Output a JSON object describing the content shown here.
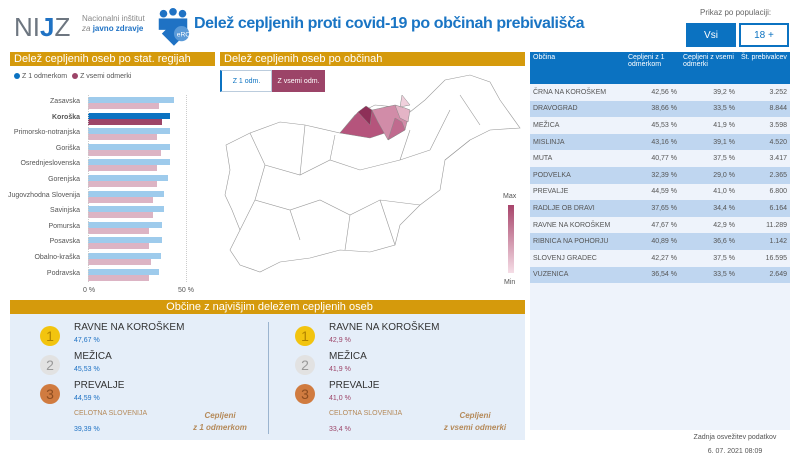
{
  "header": {
    "logo": "NIJZ",
    "logo_sub1": "Nacionalni inštitut",
    "logo_sub2_prefix": "za",
    "logo_sub2_bold": "javno zdravje",
    "logo2": "eRCO",
    "title": "Delež cepljenih proti covid-19 po občinah prebivališča"
  },
  "population": {
    "label": "Prikaz po populaciji:",
    "options": [
      "Vsi",
      "18 +"
    ],
    "selected": "Vsi"
  },
  "regions_panel": {
    "title": "Delež cepljenih oseb po stat. regijah",
    "legend": [
      "Z 1 odmerkom",
      "Z vsemi odmerki"
    ]
  },
  "chart_data": {
    "type": "bar",
    "orientation": "horizontal",
    "xlim": [
      0,
      50
    ],
    "xticks": [
      "0 %",
      "50 %"
    ],
    "categories": [
      "Zasavska",
      "Koroška",
      "Primorsko-notranjska",
      "Goriška",
      "Osrednjeslovenska",
      "Gorenjska",
      "Jugovzhodna Slovenija",
      "Savinjska",
      "Pomurska",
      "Posavska",
      "Obalno-kraška",
      "Podravska"
    ],
    "highlighted": "Koroška",
    "series": [
      {
        "name": "Z 1 odmerkom",
        "color": "#9ecbec",
        "highlight_color": "#0b72c1",
        "values": [
          44,
          42,
          42,
          42,
          42,
          41,
          39,
          39,
          38,
          38,
          37,
          36
        ]
      },
      {
        "name": "Z vsemi odmerki",
        "color": "#dcb4c4",
        "highlight_color": "#9c4468",
        "values": [
          36,
          38,
          35,
          37,
          35,
          35,
          33,
          33,
          31,
          31,
          32,
          31
        ]
      }
    ]
  },
  "map_panel": {
    "title": "Delež cepljenih oseb po občinah",
    "tabs": [
      "Z 1 odm.",
      "Z vsemi odm."
    ],
    "active_tab": "Z vsemi odm.",
    "legend_max": "Max",
    "legend_min": "Min",
    "color": "#a8456b"
  },
  "table": {
    "columns": [
      "Občina",
      "Cepljeni z 1 odmerkom",
      "Cepljeni z vsemi odmerki",
      "Št. prebivalcev"
    ],
    "rows": [
      [
        "ČRNA NA KOROŠKEM",
        "42,56 %",
        "39,2 %",
        "3.252"
      ],
      [
        "DRAVOGRAD",
        "38,66 %",
        "33,5 %",
        "8.844"
      ],
      [
        "MEŽICA",
        "45,53 %",
        "41,9 %",
        "3.598"
      ],
      [
        "MISLINJA",
        "43,16 %",
        "39,1 %",
        "4.520"
      ],
      [
        "MUTA",
        "40,77 %",
        "37,5 %",
        "3.417"
      ],
      [
        "PODVELKA",
        "32,39 %",
        "29,0 %",
        "2.365"
      ],
      [
        "PREVALJE",
        "44,59 %",
        "41,0 %",
        "6.800"
      ],
      [
        "RADLJE OB DRAVI",
        "37,65 %",
        "34,4 %",
        "6.164"
      ],
      [
        "RAVNE NA KOROŠKEM",
        "47,67 %",
        "42,9 %",
        "11.289"
      ],
      [
        "RIBNICA NA POHORJU",
        "40,89 %",
        "36,6 %",
        "1.142"
      ],
      [
        "SLOVENJ GRADEC",
        "42,27 %",
        "37,5 %",
        "16.595"
      ],
      [
        "VUZENICA",
        "36,54 %",
        "33,5 %",
        "2.649"
      ]
    ]
  },
  "top": {
    "title": "Občine z najvišjim deležem cepljenih oseb",
    "first": {
      "items": [
        {
          "rank": "1",
          "name": "RAVNE NA KOROŠKEM",
          "value": "47,67 %"
        },
        {
          "rank": "2",
          "name": "MEŽICA",
          "value": "45,53 %"
        },
        {
          "rank": "3",
          "name": "PREVALJE",
          "value": "44,59 %"
        }
      ],
      "slovenia_label": "CELOTNA SLOVENIJA",
      "slovenia_value": "39,39 %",
      "caption1": "Cepljeni",
      "caption2": "z 1 odmerkom"
    },
    "all": {
      "items": [
        {
          "rank": "1",
          "name": "RAVNE NA KOROŠKEM",
          "value": "42,9 %"
        },
        {
          "rank": "2",
          "name": "MEŽICA",
          "value": "41,9 %"
        },
        {
          "rank": "3",
          "name": "PREVALJE",
          "value": "41,0 %"
        }
      ],
      "slovenia_label": "CELOTNA SLOVENIJA",
      "slovenia_value": "33,4 %",
      "caption1": "Cepljeni",
      "caption2": "z vsemi odmerki"
    }
  },
  "footer": {
    "label": "Zadnja osvežitev podatkov",
    "date": "6. 07. 2021 08:09"
  }
}
